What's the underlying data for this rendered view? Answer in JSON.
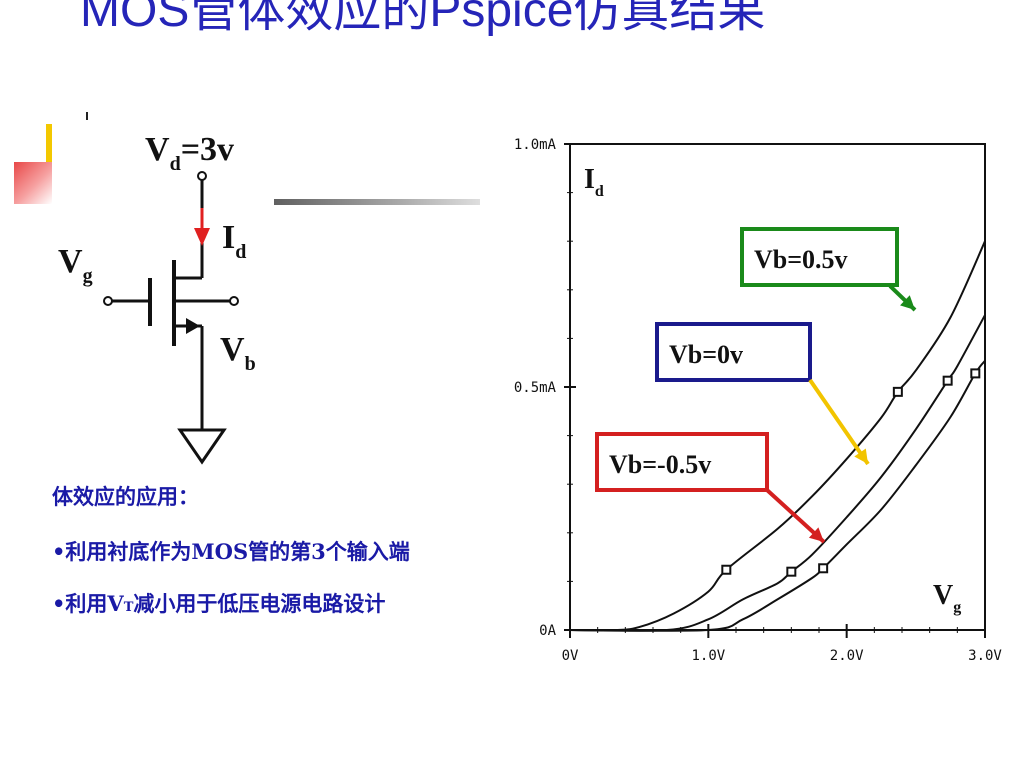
{
  "slide": {
    "title": "MOS管体效应的Pspice仿真结果"
  },
  "circuit": {
    "vd_main": "V",
    "vd_sub": "d",
    "vd_suffix": "=3v",
    "id_main": "I",
    "id_sub": "d",
    "vg_main": "V",
    "vg_sub": "g",
    "vb_main": "V",
    "vb_sub": "b"
  },
  "notes": {
    "heading": "体效应的应用：",
    "bullet1": "•利用衬底作为MOS管的第3个输入端",
    "bullet2_a": "•利用V",
    "bullet2_sub": "T",
    "bullet2_b": "减小用于低压电源电路设计"
  },
  "chart_data": {
    "type": "line",
    "x_ticks": [
      "0V",
      "1.0V",
      "2.0V",
      "3.0V"
    ],
    "y_ticks": [
      "0A",
      "0.5mA",
      "1.0mA"
    ],
    "xlim": [
      0,
      3.0
    ],
    "ylim": [
      0,
      1.0
    ],
    "x_unit": "V",
    "y_unit": "mA",
    "ylabel_main": "I",
    "ylabel_sub": "d",
    "xlabel_main": "V",
    "xlabel_sub": "g",
    "series": [
      {
        "name": "Vb=0.5v",
        "color": "#1a8a1a",
        "x": [
          0.0,
          0.33,
          0.5,
          0.75,
          1.0,
          1.13,
          1.5,
          1.75,
          2.0,
          2.25,
          2.37,
          2.5,
          2.75,
          3.0
        ],
        "y": [
          0.0,
          0.0,
          0.006,
          0.034,
          0.079,
          0.124,
          0.208,
          0.275,
          0.352,
          0.437,
          0.49,
          0.534,
          0.643,
          0.8
        ],
        "markers": [
          [
            1.13,
            0.124
          ],
          [
            2.37,
            0.49
          ]
        ]
      },
      {
        "name": "Vb=0v",
        "color": "#1a1a8c",
        "x": [
          0.0,
          0.7,
          1.0,
          1.25,
          1.5,
          1.6,
          1.75,
          2.0,
          2.25,
          2.5,
          2.73,
          2.8,
          3.0
        ],
        "y": [
          0.0,
          0.0,
          0.022,
          0.063,
          0.096,
          0.12,
          0.155,
          0.232,
          0.315,
          0.413,
          0.513,
          0.543,
          0.648
        ],
        "markers": [
          [
            1.6,
            0.12
          ],
          [
            2.73,
            0.513
          ]
        ]
      },
      {
        "name": "Vb=-0.5v",
        "color": "#d42020",
        "x": [
          0.0,
          1.0,
          1.25,
          1.5,
          1.75,
          1.83,
          2.0,
          2.25,
          2.5,
          2.75,
          2.93,
          3.0
        ],
        "y": [
          0.0,
          0.0,
          0.022,
          0.063,
          0.107,
          0.127,
          0.176,
          0.248,
          0.339,
          0.438,
          0.528,
          0.554
        ],
        "markers": [
          [
            1.83,
            0.127
          ],
          [
            2.93,
            0.528
          ]
        ]
      }
    ]
  }
}
